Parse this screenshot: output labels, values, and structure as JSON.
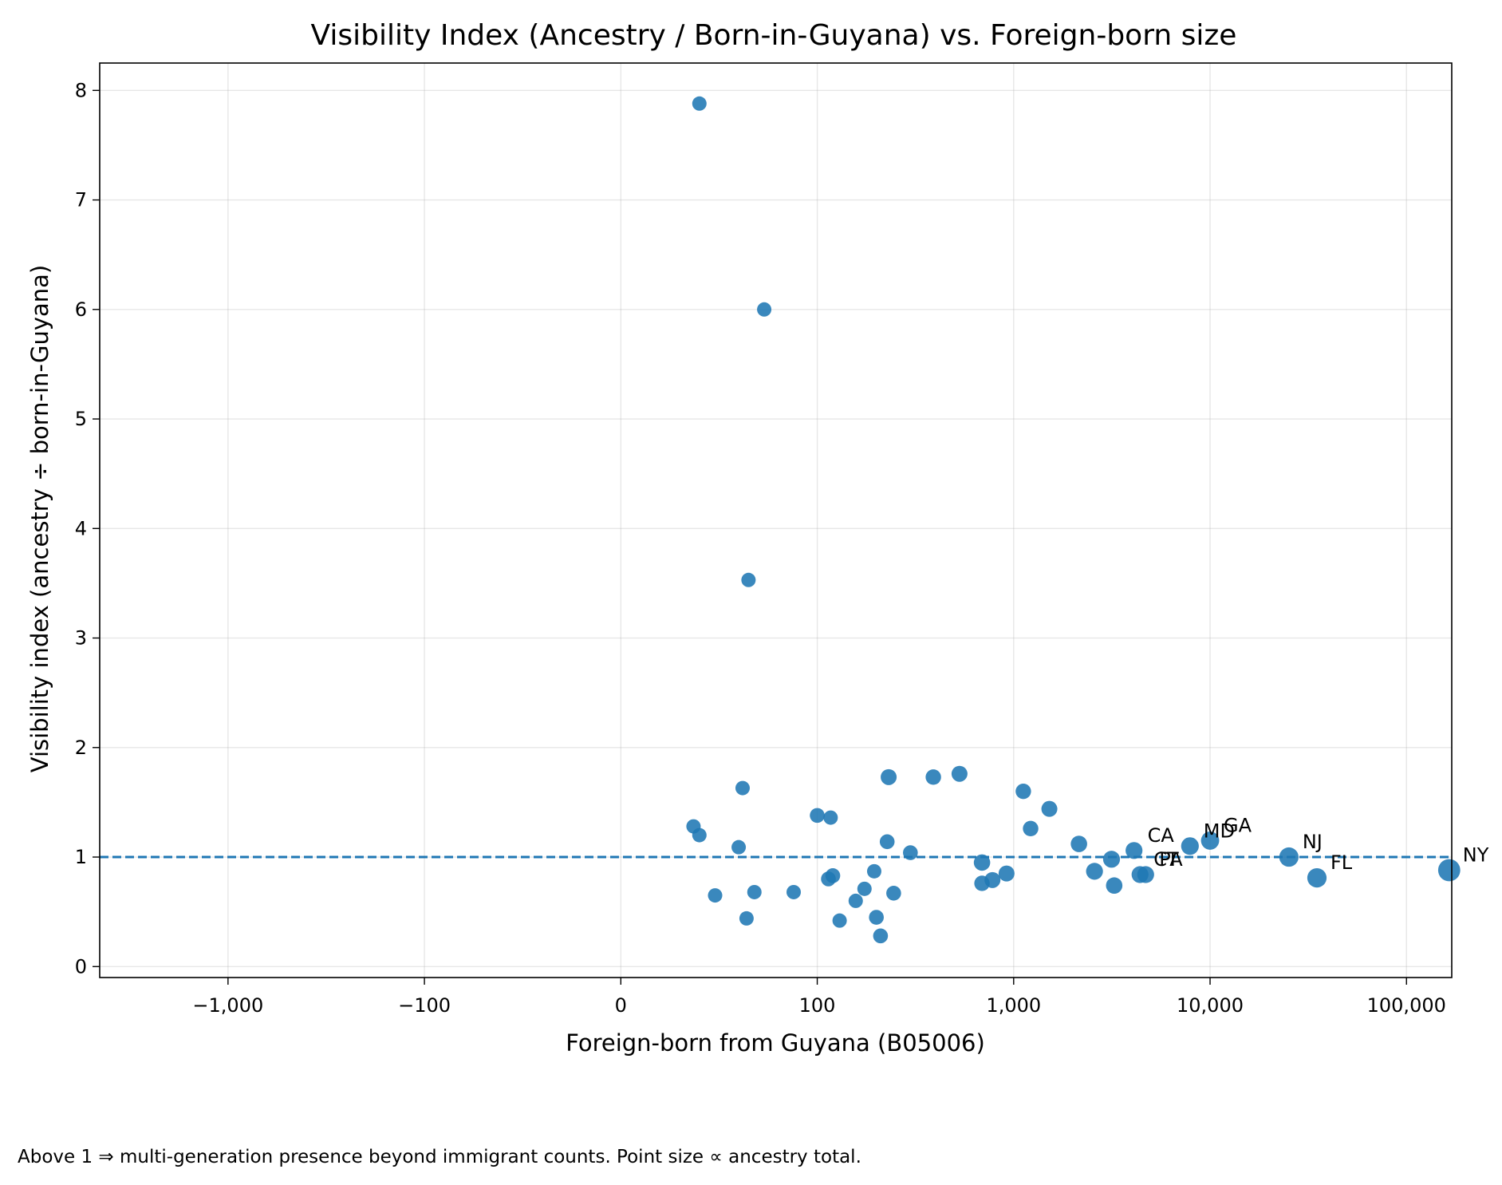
{
  "chart_data": {
    "type": "scatter",
    "title": "Visibility Index (Ancestry / Born-in-Guyana) vs. Foreign-born size",
    "xlabel": "Foreign-born from Guyana (B05006)",
    "ylabel": "Visibility index (ancestry ÷ born-in-Guyana)",
    "x_scale": "symlog",
    "x_ticks": [
      {
        "value": -1000,
        "label": "−1,000"
      },
      {
        "value": -100,
        "label": "−100"
      },
      {
        "value": 0,
        "label": "0"
      },
      {
        "value": 100,
        "label": "100"
      },
      {
        "value": 1000,
        "label": "1,000"
      },
      {
        "value": 10000,
        "label": "10,000"
      },
      {
        "value": 100000,
        "label": "100,000"
      }
    ],
    "y_ticks": [
      0,
      1,
      2,
      3,
      4,
      5,
      6,
      7,
      8
    ],
    "xlim": [
      -4500,
      170000
    ],
    "ylim": [
      -0.1,
      8.25
    ],
    "reference_line": {
      "y": 1,
      "style": "dashed"
    },
    "grid": true,
    "point_color": "#1f77b4",
    "caption": "Above 1 ⇒ multi-generation presence beyond immigrant counts. Point size ∝ ancestry total.",
    "points": [
      {
        "x": 40,
        "y": 7.88,
        "size": 0.5
      },
      {
        "x": 73,
        "y": 6.0,
        "size": 0.5
      },
      {
        "x": 65,
        "y": 3.53,
        "size": 0.5
      },
      {
        "x": 62,
        "y": 1.63,
        "size": 0.5
      },
      {
        "x": 37,
        "y": 1.28,
        "size": 0.5
      },
      {
        "x": 40,
        "y": 1.2,
        "size": 0.5
      },
      {
        "x": 60,
        "y": 1.09,
        "size": 0.5
      },
      {
        "x": 48,
        "y": 0.65,
        "size": 0.5
      },
      {
        "x": 68,
        "y": 0.68,
        "size": 0.5
      },
      {
        "x": 88,
        "y": 0.68,
        "size": 0.5
      },
      {
        "x": 64,
        "y": 0.44,
        "size": 0.5
      },
      {
        "x": 100,
        "y": 1.38,
        "size": 0.6
      },
      {
        "x": 117,
        "y": 1.36,
        "size": 0.5
      },
      {
        "x": 114,
        "y": 0.8,
        "size": 0.6
      },
      {
        "x": 120,
        "y": 0.83,
        "size": 0.6
      },
      {
        "x": 130,
        "y": 0.42,
        "size": 0.5
      },
      {
        "x": 157,
        "y": 0.6,
        "size": 0.5
      },
      {
        "x": 174,
        "y": 0.71,
        "size": 0.5
      },
      {
        "x": 195,
        "y": 0.87,
        "size": 0.5
      },
      {
        "x": 200,
        "y": 0.45,
        "size": 0.6
      },
      {
        "x": 210,
        "y": 0.28,
        "size": 0.6
      },
      {
        "x": 227,
        "y": 1.14,
        "size": 0.6
      },
      {
        "x": 231,
        "y": 1.73,
        "size": 0.8
      },
      {
        "x": 245,
        "y": 0.67,
        "size": 0.6
      },
      {
        "x": 298,
        "y": 1.04,
        "size": 0.6
      },
      {
        "x": 390,
        "y": 1.73,
        "size": 0.7
      },
      {
        "x": 530,
        "y": 1.76,
        "size": 0.8
      },
      {
        "x": 690,
        "y": 0.95,
        "size": 0.9
      },
      {
        "x": 690,
        "y": 0.76,
        "size": 0.7
      },
      {
        "x": 780,
        "y": 0.79,
        "size": 0.8
      },
      {
        "x": 920,
        "y": 0.85,
        "size": 0.8
      },
      {
        "x": 1120,
        "y": 1.6,
        "size": 0.7
      },
      {
        "x": 1220,
        "y": 1.26,
        "size": 0.7
      },
      {
        "x": 1520,
        "y": 1.44,
        "size": 0.8
      },
      {
        "x": 2150,
        "y": 1.12,
        "size": 0.9
      },
      {
        "x": 2580,
        "y": 0.87,
        "size": 1.0
      },
      {
        "x": 3150,
        "y": 0.98,
        "size": 1.0
      },
      {
        "x": 3250,
        "y": 0.74,
        "size": 0.9
      },
      {
        "x": 4100,
        "y": 1.06,
        "size": 1.0,
        "label": "CA"
      },
      {
        "x": 4400,
        "y": 0.84,
        "size": 1.0,
        "label": "CT"
      },
      {
        "x": 4700,
        "y": 0.84,
        "size": 1.0,
        "label": "PA"
      },
      {
        "x": 7900,
        "y": 1.1,
        "size": 1.2,
        "label": "MD"
      },
      {
        "x": 10000,
        "y": 1.15,
        "size": 1.3,
        "label": "GA"
      },
      {
        "x": 25200,
        "y": 1.0,
        "size": 1.6,
        "label": "NJ"
      },
      {
        "x": 35000,
        "y": 0.81,
        "size": 1.6,
        "label": "FL"
      },
      {
        "x": 165000,
        "y": 0.88,
        "size": 2.5,
        "label": "NY"
      }
    ]
  }
}
